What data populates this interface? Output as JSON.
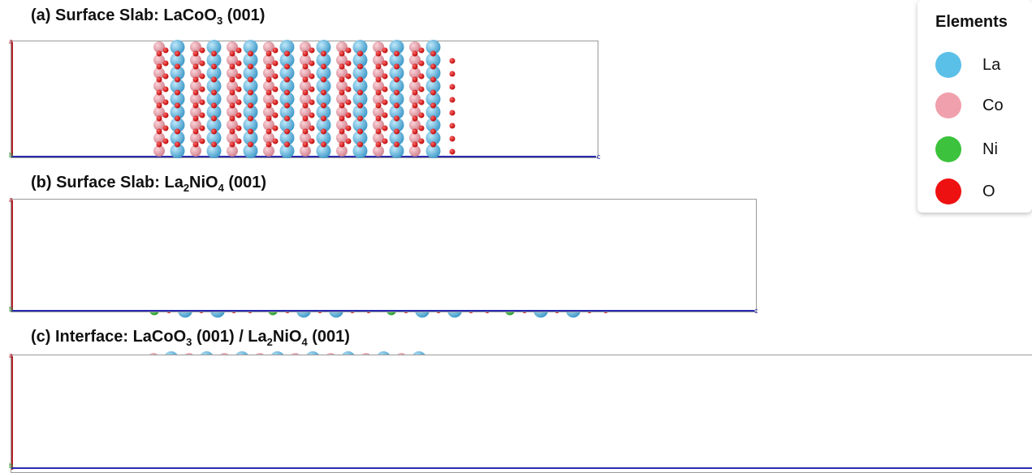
{
  "panels": [
    {
      "title_prefix": "(a) Surface Slab: LaCoO",
      "title_sub1": "3",
      "title_mid": " (001)",
      "title_sub2": "",
      "title_tail": ""
    },
    {
      "title_prefix": "(b) Surface Slab: La",
      "title_sub1": "2",
      "title_mid": "NiO",
      "title_sub2": "4",
      "title_tail": " (001)"
    },
    {
      "title_prefix": "(c) Interface: LaCoO",
      "title_sub1": "3",
      "title_mid": " (001) / La",
      "title_sub2": "2",
      "title_tail": "NiO4 (001)"
    }
  ],
  "panel_c_tail": {
    "a": "NiO",
    "b": "4",
    "c": " (001)"
  },
  "axes": {
    "a": "a",
    "b": "b",
    "c": "c"
  },
  "legend": {
    "title": "Elements",
    "items": [
      {
        "label": "La",
        "color": "#5bc0e8"
      },
      {
        "label": "Co",
        "color": "#f0a0ac"
      },
      {
        "label": "Ni",
        "color": "#3cc23c"
      },
      {
        "label": "O",
        "color": "#ee1111"
      }
    ]
  },
  "colors": {
    "La": "#5bc0e8",
    "Co": "#f0a0ac",
    "Ni": "#3cc23c",
    "O": "#ee1111"
  }
}
